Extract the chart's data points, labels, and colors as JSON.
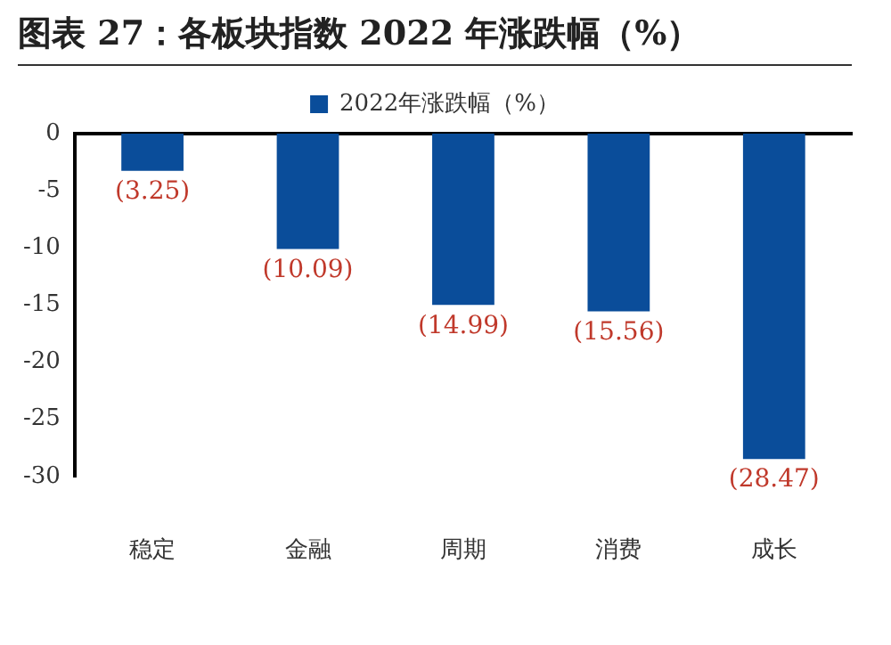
{
  "chart_data": {
    "type": "bar",
    "title": "图表 27：各板块指数 2022 年涨跌幅（%）",
    "categories": [
      "稳定",
      "金融",
      "周期",
      "消费",
      "成长"
    ],
    "series": [
      {
        "name": "2022年涨跌幅（%）",
        "color": "#0a4d9a",
        "values": [
          -3.25,
          -10.09,
          -14.99,
          -15.56,
          -28.47
        ],
        "value_labels": [
          "(3.25)",
          "(10.09)",
          "(14.99)",
          "(15.56)",
          "(28.47)"
        ]
      }
    ],
    "ylim": [
      -30,
      0
    ],
    "yticks": [
      0,
      -5,
      -10,
      -15,
      -20,
      -25,
      -30
    ],
    "grid": false,
    "legend": "top"
  }
}
